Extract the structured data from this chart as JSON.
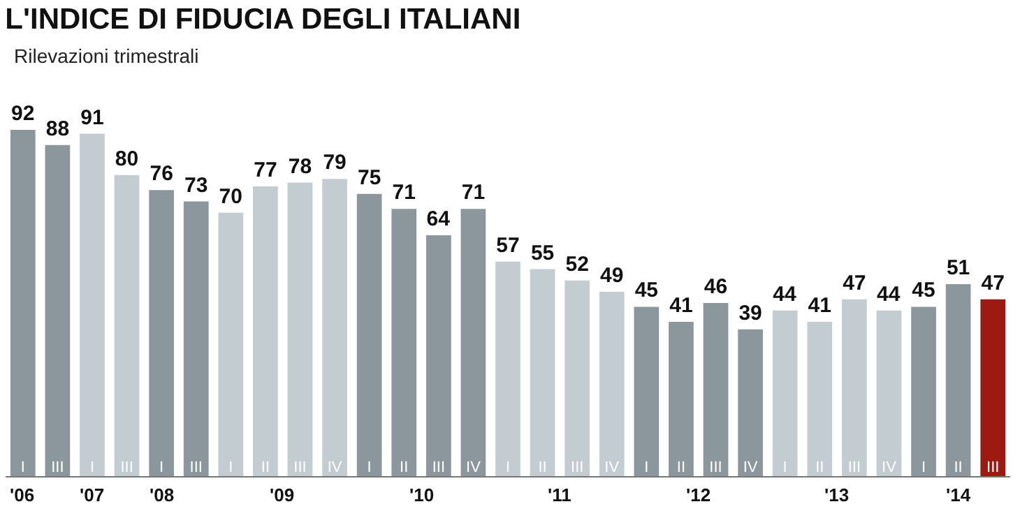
{
  "chart_data": {
    "type": "bar",
    "title": "L'INDICE DI FIDUCIA DEGLI ITALIANI",
    "subtitle": "Rilevazioni trimestrali",
    "categories": [
      "I",
      "III",
      "I",
      "III",
      "I",
      "III",
      "I",
      "II",
      "III",
      "IV",
      "I",
      "II",
      "III",
      "IV",
      "I",
      "II",
      "III",
      "IV",
      "I",
      "II",
      "III",
      "IV",
      "I",
      "II",
      "III",
      "IV",
      "I",
      "II",
      "III"
    ],
    "values": [
      92,
      88,
      91,
      80,
      76,
      73,
      70,
      77,
      78,
      79,
      75,
      71,
      64,
      71,
      57,
      55,
      52,
      49,
      45,
      41,
      46,
      39,
      44,
      41,
      47,
      44,
      45,
      51,
      47
    ],
    "colors": [
      "#8c979d",
      "#8c979d",
      "#c3ccd0",
      "#c3ccd0",
      "#8c979d",
      "#8c979d",
      "#c3ccd0",
      "#c3ccd0",
      "#c3ccd0",
      "#c3ccd0",
      "#8c979d",
      "#8c979d",
      "#8c979d",
      "#8c979d",
      "#c3ccd0",
      "#c3ccd0",
      "#c3ccd0",
      "#c3ccd0",
      "#8c979d",
      "#8c979d",
      "#8c979d",
      "#8c979d",
      "#c3ccd0",
      "#c3ccd0",
      "#c3ccd0",
      "#c3ccd0",
      "#8c979d",
      "#8c979d",
      "#9c1a12"
    ],
    "data_labels": true,
    "tick_labels": "x",
    "annotations": [
      "'06",
      "'07",
      "'08",
      "'09",
      "'10",
      "'11",
      "'12",
      "'13",
      "'14"
    ]
  }
}
